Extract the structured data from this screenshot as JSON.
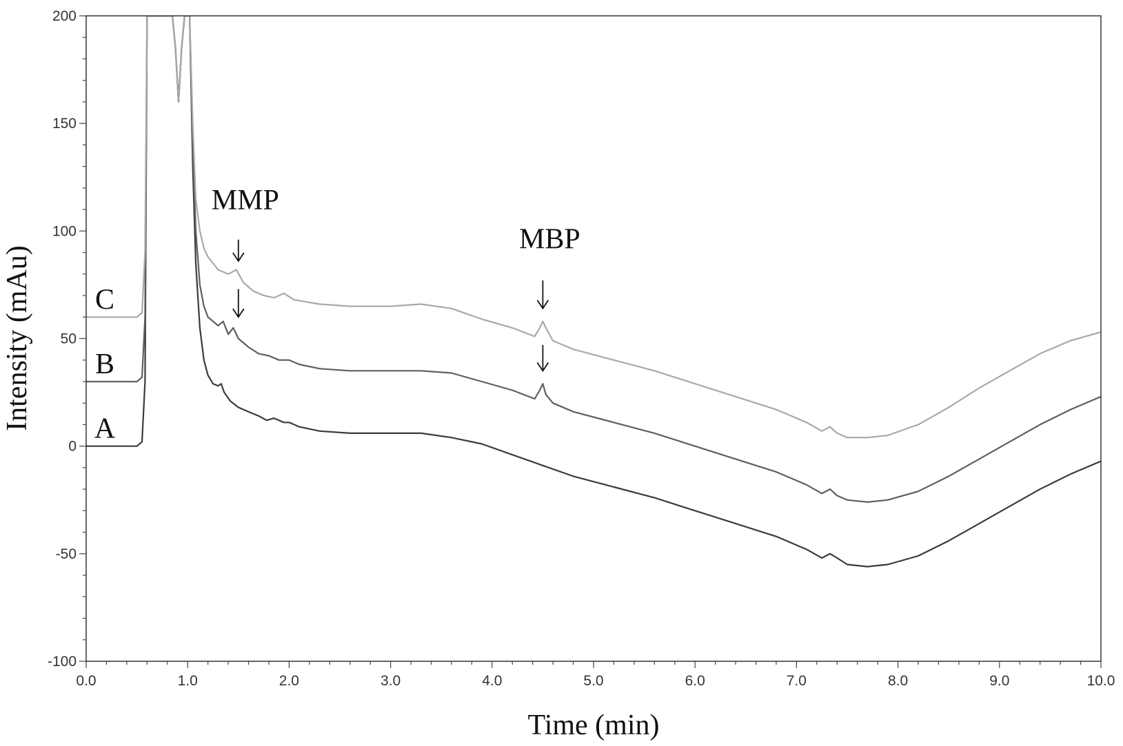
{
  "chart_data": {
    "type": "line",
    "title": "",
    "xlabel": "Time (min)",
    "ylabel": "Intensity (mAu)",
    "xlim": [
      0,
      10
    ],
    "ylim": [
      -100,
      200
    ],
    "x_ticks": [
      "0.0",
      "1.0",
      "2.0",
      "3.0",
      "4.0",
      "5.0",
      "6.0",
      "7.0",
      "8.0",
      "9.0",
      "10.0"
    ],
    "y_ticks": [
      "-100",
      "-50",
      "0",
      "50",
      "100",
      "150",
      "200"
    ],
    "grid": false,
    "series": [
      {
        "name": "A",
        "color": "#3a3a3a",
        "x": [
          0,
          0.5,
          0.55,
          0.58,
          0.6,
          0.62,
          0.85,
          0.88,
          0.91,
          0.94,
          0.97,
          1.0,
          1.02,
          1.05,
          1.08,
          1.12,
          1.16,
          1.2,
          1.25,
          1.3,
          1.33,
          1.36,
          1.42,
          1.5,
          1.6,
          1.7,
          1.78,
          1.85,
          1.95,
          2.0,
          2.1,
          2.3,
          2.6,
          3.0,
          3.3,
          3.6,
          3.9,
          4.2,
          4.5,
          4.8,
          5.2,
          5.6,
          6.0,
          6.4,
          6.8,
          7.1,
          7.25,
          7.33,
          7.4,
          7.5,
          7.7,
          7.9,
          8.2,
          8.5,
          8.8,
          9.1,
          9.4,
          9.7,
          10.0
        ],
        "y": [
          0,
          0,
          2,
          30,
          200,
          200,
          200,
          185,
          160,
          185,
          200,
          200,
          200,
          130,
          85,
          55,
          40,
          33,
          29,
          28,
          29,
          25,
          21,
          18,
          16,
          14,
          12,
          13,
          11,
          11,
          9,
          7,
          6,
          6,
          6,
          4,
          1,
          -4,
          -9,
          -14,
          -19,
          -24,
          -30,
          -36,
          -42,
          -48,
          -52,
          -50,
          -52,
          -55,
          -56,
          -55,
          -51,
          -44,
          -36,
          -28,
          -20,
          -13,
          -7
        ]
      },
      {
        "name": "B",
        "color": "#5e5e5e",
        "x": [
          0,
          0.5,
          0.55,
          0.58,
          0.6,
          0.62,
          0.85,
          0.88,
          0.91,
          0.94,
          0.97,
          1.0,
          1.02,
          1.05,
          1.08,
          1.12,
          1.16,
          1.2,
          1.25,
          1.3,
          1.35,
          1.4,
          1.45,
          1.5,
          1.6,
          1.7,
          1.8,
          1.9,
          2.0,
          2.1,
          2.3,
          2.6,
          3.0,
          3.3,
          3.6,
          3.9,
          4.2,
          4.42,
          4.47,
          4.5,
          4.53,
          4.6,
          4.8,
          5.2,
          5.6,
          6.0,
          6.4,
          6.8,
          7.1,
          7.25,
          7.33,
          7.4,
          7.5,
          7.7,
          7.9,
          8.2,
          8.5,
          8.8,
          9.1,
          9.4,
          9.7,
          10.0
        ],
        "y": [
          30,
          30,
          32,
          60,
          200,
          200,
          200,
          185,
          160,
          185,
          200,
          200,
          200,
          140,
          100,
          75,
          65,
          60,
          58,
          56,
          58,
          52,
          55,
          50,
          46,
          43,
          42,
          40,
          40,
          38,
          36,
          35,
          35,
          35,
          34,
          30,
          26,
          22,
          26,
          29,
          24,
          20,
          16,
          11,
          6,
          0,
          -6,
          -12,
          -18,
          -22,
          -20,
          -23,
          -25,
          -26,
          -25,
          -21,
          -14,
          -6,
          2,
          10,
          17,
          23
        ]
      },
      {
        "name": "C",
        "color": "#a8a8a8",
        "x": [
          0,
          0.5,
          0.55,
          0.58,
          0.6,
          0.62,
          0.85,
          0.88,
          0.91,
          0.94,
          0.97,
          1.0,
          1.02,
          1.05,
          1.08,
          1.12,
          1.16,
          1.2,
          1.25,
          1.3,
          1.35,
          1.4,
          1.48,
          1.55,
          1.65,
          1.75,
          1.85,
          1.95,
          2.05,
          2.3,
          2.6,
          3.0,
          3.3,
          3.6,
          3.9,
          4.2,
          4.42,
          4.47,
          4.5,
          4.53,
          4.6,
          4.8,
          5.2,
          5.6,
          6.0,
          6.4,
          6.8,
          7.1,
          7.25,
          7.33,
          7.4,
          7.5,
          7.7,
          7.9,
          8.2,
          8.5,
          8.8,
          9.1,
          9.4,
          9.7,
          10.0
        ],
        "y": [
          60,
          60,
          62,
          90,
          200,
          200,
          200,
          185,
          160,
          185,
          200,
          200,
          200,
          150,
          115,
          100,
          92,
          88,
          85,
          82,
          81,
          80,
          82,
          76,
          72,
          70,
          69,
          71,
          68,
          66,
          65,
          65,
          66,
          64,
          59,
          55,
          51,
          55,
          58,
          55,
          49,
          45,
          40,
          35,
          29,
          23,
          17,
          11,
          7,
          9,
          6,
          4,
          4,
          5,
          10,
          18,
          27,
          35,
          43,
          49,
          53
        ]
      }
    ],
    "annotations": [
      {
        "text": "MMP",
        "x": 1.5,
        "y": 110,
        "arrows": [
          {
            "x": 1.5,
            "y_top": 96,
            "y_bottom": 86
          },
          {
            "x": 1.5,
            "y_top": 73,
            "y_bottom": 60
          }
        ]
      },
      {
        "text": "MBP",
        "x": 4.5,
        "y": 92,
        "arrows": [
          {
            "x": 4.5,
            "y_top": 77,
            "y_bottom": 64
          },
          {
            "x": 4.5,
            "y_top": 47,
            "y_bottom": 35
          }
        ]
      }
    ]
  }
}
